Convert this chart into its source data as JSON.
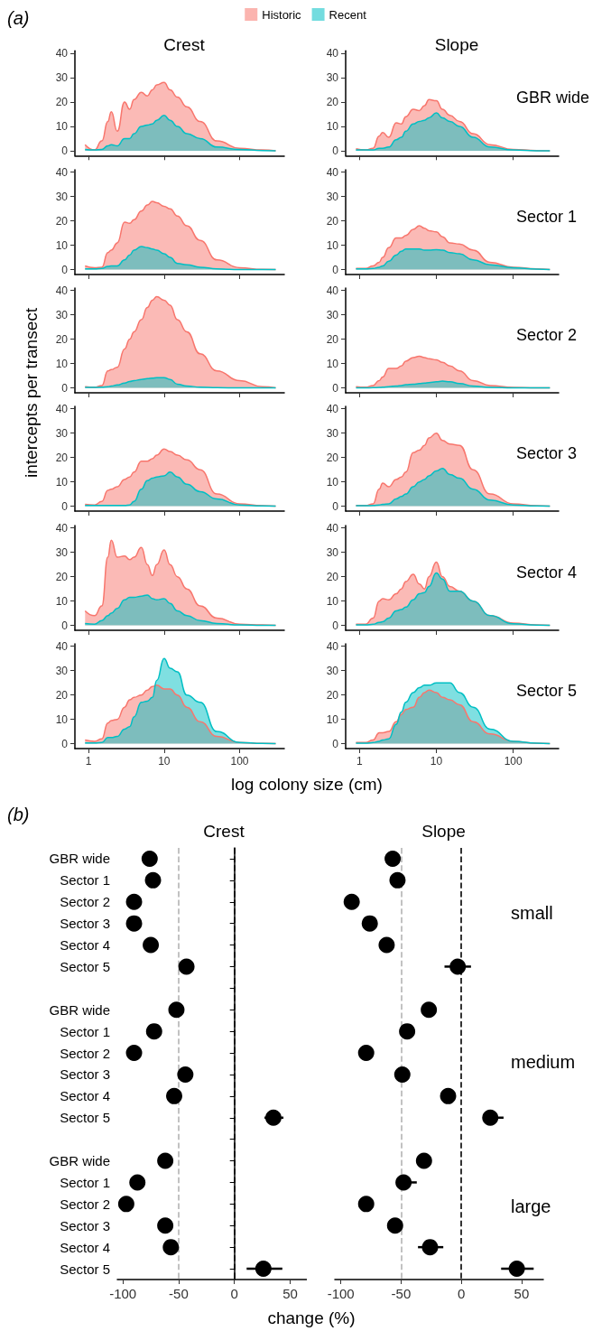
{
  "chart_data": [
    {
      "type": "area",
      "title": "Crest",
      "annotations": [
        "(a)"
      ],
      "legend": "top",
      "log": "x",
      "x": [
        0.9,
        1.2,
        1.5,
        1.8,
        2,
        2.4,
        3,
        3.5,
        4,
        5,
        6,
        7,
        8,
        10,
        12,
        15,
        20,
        30,
        50,
        100,
        200,
        300
      ],
      "xlim": [
        0.66,
        390
      ],
      "xticks": [
        1,
        10,
        100
      ],
      "ylim": [
        -2,
        41
      ],
      "yticks": [
        0,
        10,
        20,
        30,
        40
      ],
      "tick_labels": "y",
      "series": [
        {
          "name": "Historic",
          "color": "#f8766d",
          "values": [
            2.5,
            0.3,
            4,
            12,
            16,
            8,
            20,
            17,
            21,
            24,
            22.5,
            25,
            27,
            28,
            25,
            22,
            18,
            12,
            4,
            1,
            0.3,
            0
          ]
        },
        {
          "name": "Recent",
          "color": "#00bfc4",
          "values": [
            0.5,
            0.3,
            0.5,
            2,
            2.5,
            2,
            5,
            5,
            7,
            10,
            10.5,
            11,
            12.5,
            14.5,
            12.5,
            10,
            7,
            5,
            1.5,
            0.5,
            0.1,
            0
          ]
        }
      ]
    },
    {
      "type": "area",
      "title": "Slope",
      "annotations": [
        "GBR wide"
      ],
      "log": "x",
      "x": [
        0.9,
        1.2,
        1.5,
        1.8,
        2,
        2.4,
        3,
        3.5,
        4,
        5,
        6,
        7,
        8,
        10,
        12,
        15,
        20,
        30,
        50,
        100,
        200,
        300
      ],
      "xlim": [
        0.66,
        390
      ],
      "xticks": [
        1,
        10,
        100
      ],
      "ylim": [
        -2,
        41
      ],
      "yticks": [
        0,
        10,
        20,
        30,
        40
      ],
      "tick_labels": "y",
      "series": [
        {
          "color": "#f8766d",
          "values": [
            0.8,
            0.3,
            1,
            6,
            7.5,
            5.5,
            11.5,
            11,
            14,
            17,
            16.5,
            18.5,
            21,
            20.5,
            17,
            14.5,
            12,
            7,
            2.5,
            0.5,
            0.1,
            0
          ]
        },
        {
          "color": "#00bfc4",
          "values": [
            0.3,
            0.3,
            0.3,
            1,
            1,
            1.5,
            4.5,
            5.5,
            8,
            11,
            12,
            12.5,
            13.5,
            15.5,
            13.5,
            12,
            10,
            5.5,
            1.5,
            0.3,
            0,
            0
          ]
        }
      ]
    },
    {
      "type": "area",
      "log": "x",
      "x": [
        0.9,
        1.2,
        1.5,
        1.8,
        2,
        2.4,
        3,
        3.5,
        4,
        5,
        6,
        7,
        8,
        10,
        12,
        15,
        20,
        30,
        50,
        100,
        200,
        300
      ],
      "xlim": [
        0.66,
        390
      ],
      "xticks": [
        1,
        10,
        100
      ],
      "ylim": [
        -2,
        41
      ],
      "yticks": [
        0,
        10,
        20,
        30,
        40
      ],
      "tick_labels": "y",
      "series": [
        {
          "color": "#f8766d",
          "values": [
            1.5,
            0.8,
            1,
            7,
            8,
            11,
            19.5,
            19,
            20.5,
            24,
            26.5,
            28,
            27.5,
            26,
            25,
            22,
            18,
            12,
            4,
            0.8,
            0.1,
            0
          ]
        },
        {
          "color": "#00bfc4",
          "values": [
            0.3,
            0.3,
            0.5,
            1.3,
            1.5,
            1.5,
            4,
            6,
            8,
            9.5,
            9,
            8.5,
            8,
            6.5,
            5,
            2.5,
            2,
            1,
            0.3,
            0,
            0,
            0
          ]
        }
      ]
    },
    {
      "type": "area",
      "annotations": [
        "Sector 1"
      ],
      "log": "x",
      "x": [
        0.9,
        1.2,
        1.5,
        1.8,
        2,
        2.4,
        3,
        3.5,
        4,
        5,
        6,
        7,
        8,
        10,
        12,
        15,
        20,
        30,
        50,
        100,
        200,
        300
      ],
      "xlim": [
        0.66,
        390
      ],
      "xticks": [
        1,
        10,
        100
      ],
      "ylim": [
        -2,
        41
      ],
      "yticks": [
        0,
        10,
        20,
        30,
        40
      ],
      "tick_labels": "y",
      "series": [
        {
          "color": "#f8766d",
          "values": [
            0.5,
            0.5,
            1.5,
            3,
            5,
            9,
            13,
            13,
            14,
            16.5,
            18,
            17,
            16,
            15.5,
            13.5,
            11,
            10.5,
            8,
            3,
            1,
            0.3,
            0
          ]
        },
        {
          "color": "#00bfc4",
          "values": [
            0.3,
            0.3,
            0.5,
            1,
            1.5,
            3.5,
            6,
            7.5,
            8.5,
            8.5,
            8.5,
            8,
            8,
            8.2,
            8,
            7,
            6.5,
            4,
            2,
            0.8,
            0.2,
            0
          ]
        }
      ]
    },
    {
      "type": "area",
      "ylabel": "intercepts per transect",
      "log": "x",
      "x": [
        0.9,
        1.2,
        1.5,
        1.8,
        2,
        2.4,
        3,
        3.5,
        4,
        5,
        6,
        7,
        8,
        10,
        12,
        15,
        20,
        30,
        50,
        100,
        200,
        300
      ],
      "xlim": [
        0.66,
        390
      ],
      "xticks": [
        1,
        10,
        100
      ],
      "ylim": [
        -2,
        41
      ],
      "yticks": [
        0,
        10,
        20,
        30,
        40
      ],
      "tick_labels": "y",
      "series": [
        {
          "color": "#f8766d",
          "values": [
            0.5,
            0.3,
            1,
            7,
            7.5,
            8.5,
            16,
            20,
            23,
            28,
            33,
            36,
            37.5,
            36,
            34,
            28,
            23,
            14,
            7,
            3,
            0.5,
            0
          ]
        },
        {
          "color": "#00bfc4",
          "values": [
            0.2,
            0.2,
            0.3,
            0.5,
            0.8,
            1.2,
            2,
            2.6,
            3,
            3.5,
            3.8,
            4,
            4.2,
            4.2,
            3.5,
            1.5,
            0.8,
            0.3,
            0.1,
            0,
            0,
            0
          ]
        }
      ]
    },
    {
      "type": "area",
      "annotations": [
        "Sector 2"
      ],
      "log": "x",
      "x": [
        0.9,
        1.2,
        1.5,
        1.8,
        2,
        2.4,
        3,
        3.5,
        4,
        5,
        6,
        7,
        8,
        10,
        12,
        15,
        20,
        30,
        50,
        100,
        200,
        300
      ],
      "xlim": [
        0.66,
        390
      ],
      "xticks": [
        1,
        10,
        100
      ],
      "ylim": [
        -2,
        41
      ],
      "yticks": [
        0,
        10,
        20,
        30,
        40
      ],
      "tick_labels": "y",
      "series": [
        {
          "color": "#f8766d",
          "values": [
            0.5,
            0.3,
            1,
            3,
            4.5,
            8,
            8,
            9,
            11,
            12.5,
            13,
            12.5,
            12,
            11.5,
            10.5,
            9,
            7,
            3,
            1,
            0.2,
            0,
            0
          ]
        },
        {
          "color": "#00bfc4",
          "values": [
            0,
            0,
            0.1,
            0.2,
            0.3,
            0.5,
            0.8,
            1,
            1.3,
            1.5,
            1.8,
            2,
            2.2,
            2.5,
            2.8,
            2.5,
            1.8,
            0.8,
            0.2,
            0,
            0,
            0
          ]
        }
      ]
    },
    {
      "type": "area",
      "log": "x",
      "x": [
        0.9,
        1.2,
        1.5,
        1.8,
        2,
        2.4,
        3,
        3.5,
        4,
        5,
        6,
        7,
        8,
        10,
        12,
        15,
        20,
        30,
        50,
        100,
        200,
        300
      ],
      "xlim": [
        0.66,
        390
      ],
      "xticks": [
        1,
        10,
        100
      ],
      "ylim": [
        -2,
        41
      ],
      "yticks": [
        0,
        10,
        20,
        30,
        40
      ],
      "tick_labels": "y",
      "series": [
        {
          "color": "#f8766d",
          "values": [
            0.8,
            0.5,
            2,
            6.5,
            7,
            8,
            11,
            12,
            14,
            18.5,
            18.5,
            19.5,
            21,
            23.5,
            22.5,
            21,
            19,
            15,
            5,
            1,
            0.2,
            0
          ]
        },
        {
          "color": "#00bfc4",
          "values": [
            0.3,
            0.3,
            0.3,
            0.3,
            0.3,
            0.3,
            0.3,
            0.5,
            2,
            7,
            10.5,
            11.5,
            12,
            12.5,
            14,
            12,
            9,
            6,
            3,
            0.5,
            0.1,
            0
          ]
        }
      ]
    },
    {
      "type": "area",
      "annotations": [
        "Sector 3"
      ],
      "log": "x",
      "x": [
        0.9,
        1.2,
        1.5,
        1.8,
        2,
        2.4,
        3,
        3.5,
        4,
        5,
        6,
        7,
        8,
        10,
        12,
        15,
        20,
        30,
        50,
        100,
        200,
        300
      ],
      "xlim": [
        0.66,
        390
      ],
      "xticks": [
        1,
        10,
        100
      ],
      "ylim": [
        -2,
        41
      ],
      "yticks": [
        0,
        10,
        20,
        30,
        40
      ],
      "tick_labels": "y",
      "series": [
        {
          "color": "#f8766d",
          "values": [
            0.3,
            0.3,
            1,
            7,
            9.5,
            8,
            11,
            12,
            14,
            22,
            23,
            25,
            28,
            30,
            27,
            25.5,
            25,
            15,
            5,
            1,
            0.2,
            0
          ]
        },
        {
          "color": "#00bfc4",
          "values": [
            0.2,
            0.2,
            0.3,
            0.5,
            0.8,
            1,
            3,
            4,
            5,
            8,
            10,
            11,
            12.5,
            14.5,
            15.5,
            13,
            11.5,
            7,
            2.5,
            0.5,
            0.1,
            0
          ]
        }
      ]
    },
    {
      "type": "area",
      "log": "x",
      "x": [
        0.9,
        1.2,
        1.5,
        1.8,
        2,
        2.4,
        3,
        3.5,
        4,
        5,
        6,
        7,
        8,
        10,
        12,
        15,
        20,
        30,
        50,
        100,
        200,
        300
      ],
      "xlim": [
        0.66,
        390
      ],
      "xticks": [
        1,
        10,
        100
      ],
      "ylim": [
        -2,
        41
      ],
      "yticks": [
        0,
        10,
        20,
        30,
        40
      ],
      "tick_labels": "y",
      "series": [
        {
          "color": "#f8766d",
          "values": [
            6,
            4,
            8,
            28,
            35,
            28,
            28.5,
            27,
            28,
            32,
            25,
            20.5,
            25,
            31,
            25,
            20,
            15,
            8,
            3,
            0.5,
            0.2,
            0
          ]
        },
        {
          "color": "#00bfc4",
          "values": [
            0.8,
            0.5,
            2,
            4,
            5,
            7,
            10.5,
            11.5,
            11.5,
            12,
            12.5,
            11,
            10.5,
            11,
            9,
            6,
            4,
            2,
            0.8,
            0.2,
            0,
            0
          ]
        }
      ]
    },
    {
      "type": "area",
      "annotations": [
        "Sector 4"
      ],
      "log": "x",
      "x": [
        0.9,
        1.2,
        1.5,
        1.8,
        2,
        2.4,
        3,
        3.5,
        4,
        5,
        6,
        7,
        8,
        10,
        12,
        15,
        20,
        30,
        50,
        100,
        200,
        300
      ],
      "xlim": [
        0.66,
        390
      ],
      "xticks": [
        1,
        10,
        100
      ],
      "ylim": [
        -2,
        41
      ],
      "yticks": [
        0,
        10,
        20,
        30,
        40
      ],
      "tick_labels": "y",
      "series": [
        {
          "color": "#f8766d",
          "values": [
            0.5,
            0.5,
            3,
            10,
            11,
            10.5,
            13,
            15,
            18,
            21,
            17,
            15,
            20,
            26,
            20,
            16,
            14,
            10,
            4,
            1,
            0.2,
            0
          ]
        },
        {
          "color": "#00bfc4",
          "values": [
            0.2,
            0.2,
            0.5,
            1.2,
            1.5,
            3,
            6,
            6.5,
            7.5,
            10.5,
            13,
            13.5,
            16,
            21.5,
            19,
            14,
            14,
            10,
            4,
            0.7,
            0.1,
            0
          ]
        }
      ]
    },
    {
      "type": "area",
      "xlabel": "log colony size (cm)",
      "log": "x",
      "x": [
        0.9,
        1.2,
        1.5,
        1.8,
        2,
        2.4,
        3,
        3.5,
        4,
        5,
        6,
        7,
        8,
        10,
        12,
        15,
        20,
        30,
        50,
        100,
        200,
        300
      ],
      "xlim": [
        0.66,
        390
      ],
      "xticks": [
        1,
        10,
        100
      ],
      "ylim": [
        -2,
        41
      ],
      "yticks": [
        0,
        10,
        20,
        30,
        40
      ],
      "series": [
        {
          "color": "#f8766d",
          "values": [
            1.5,
            1,
            2,
            8.5,
            9.5,
            10,
            15,
            18,
            19,
            20,
            22,
            23.5,
            24,
            22.5,
            22.5,
            20,
            15,
            9,
            3,
            0.5,
            0.1,
            0
          ]
        },
        {
          "color": "#00bfc4",
          "values": [
            0.3,
            0.3,
            0.5,
            2.5,
            2.5,
            3,
            6,
            7,
            11,
            17,
            17.5,
            19,
            26,
            35,
            31,
            29.5,
            20,
            17,
            5,
            0.5,
            0.1,
            0
          ]
        }
      ]
    },
    {
      "type": "area",
      "annotations": [
        "Sector 5"
      ],
      "log": "x",
      "x": [
        0.9,
        1.2,
        1.5,
        1.8,
        2,
        2.4,
        3,
        3.5,
        4,
        5,
        6,
        7,
        8,
        10,
        12,
        15,
        20,
        30,
        50,
        100,
        200,
        300
      ],
      "xlim": [
        0.66,
        390
      ],
      "xticks": [
        1,
        10,
        100
      ],
      "ylim": [
        -2,
        41
      ],
      "yticks": [
        0,
        10,
        20,
        30,
        40
      ],
      "series": [
        {
          "color": "#f8766d",
          "values": [
            0.5,
            0.5,
            1.5,
            4.5,
            4.5,
            5,
            9,
            12,
            14,
            15,
            19,
            21,
            22,
            21,
            19,
            18,
            16,
            9,
            4,
            1,
            0.2,
            0
          ]
        },
        {
          "color": "#00bfc4",
          "values": [
            0.2,
            0.2,
            0.5,
            1,
            1.5,
            2,
            8,
            13,
            17,
            21,
            23,
            24,
            24,
            25,
            25,
            25,
            21,
            15,
            6,
            1,
            0.2,
            0
          ]
        }
      ]
    },
    {
      "type": "scatter",
      "orientation": "horizontal",
      "title": "Crest",
      "xlabel": "change (%)",
      "annotations": [
        "(b)"
      ],
      "marker": "circle",
      "color": "#000000",
      "categories": [
        "GBR wide",
        "Sector 1",
        "Sector 2",
        "Sector 3",
        "Sector 4",
        "Sector 5",
        null,
        "GBR wide",
        "Sector 1",
        "Sector 2",
        "Sector 3",
        "Sector 4",
        "Sector 5",
        null,
        "GBR wide",
        "Sector 1",
        "Sector 2",
        "Sector 3",
        "Sector 4",
        "Sector 5"
      ],
      "values": [
        -76,
        -73,
        -90,
        -90,
        -75,
        -43,
        null,
        -52,
        -72,
        -90,
        -44,
        -54,
        35,
        null,
        -62,
        -87,
        -97,
        -62,
        -57,
        26
      ],
      "errors": [
        null,
        null,
        null,
        null,
        null,
        null,
        null,
        null,
        null,
        null,
        null,
        null,
        [
          27,
          44
        ],
        null,
        null,
        null,
        null,
        null,
        null,
        [
          11,
          43
        ]
      ],
      "xlim": [
        -105,
        65
      ],
      "xticks": [
        -100,
        -50,
        0,
        50
      ],
      "ref_lines": [
        {
          "axis": "x",
          "value": -50,
          "color": "#b3b3b3",
          "line_style": "dashed"
        },
        {
          "axis": "x",
          "value": 0,
          "color": "#000000",
          "line_style": "dashed"
        }
      ]
    },
    {
      "type": "scatter",
      "orientation": "horizontal",
      "title": "Slope",
      "annotations": [
        "small",
        "medium",
        "large"
      ],
      "marker": "circle",
      "color": "#000000",
      "categories": [
        null,
        null,
        null,
        null,
        null,
        null,
        null,
        null,
        null,
        null,
        null,
        null,
        null,
        null,
        null,
        null,
        null,
        null,
        null,
        null
      ],
      "values": [
        -57,
        -53,
        -91,
        -76,
        -62,
        -3,
        null,
        -27,
        -45,
        -79,
        -49,
        -11,
        24,
        null,
        -31,
        -48,
        -79,
        -55,
        -26,
        46
      ],
      "errors": [
        null,
        null,
        null,
        null,
        null,
        [
          -14,
          8
        ],
        null,
        null,
        null,
        null,
        null,
        null,
        [
          18,
          35
        ],
        null,
        null,
        [
          -52,
          -37
        ],
        null,
        null,
        [
          -36,
          -15
        ],
        [
          33,
          60
        ]
      ],
      "xlim": [
        -105,
        68
      ],
      "xticks": [
        -100,
        -50,
        0,
        50
      ],
      "tick_labels": "x",
      "ref_lines": [
        {
          "axis": "x",
          "value": -50,
          "color": "#b3b3b3",
          "line_style": "dashed"
        },
        {
          "axis": "x",
          "value": 0,
          "color": "#000000",
          "line_style": "dashed"
        }
      ]
    }
  ]
}
